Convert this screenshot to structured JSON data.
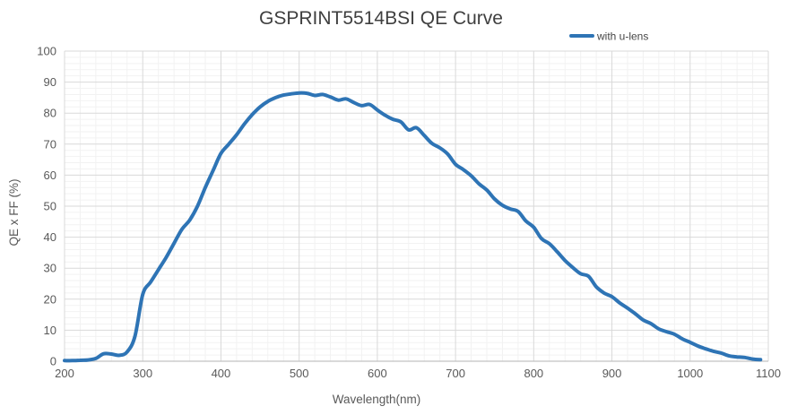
{
  "chart_data": {
    "type": "line",
    "title": "GSPRINT5514BSI QE Curve",
    "xlabel": "Wavelength(nm)",
    "ylabel": "QE x FF (%)",
    "xlim": [
      200,
      1100
    ],
    "ylim": [
      0,
      100
    ],
    "x_tick_step": 100,
    "y_tick_step": 10,
    "x_minor_step": 20,
    "y_minor_step": 2,
    "grid": true,
    "legend_position": "top-right",
    "series": [
      {
        "name": "with u-lens",
        "color": "#2E74B5",
        "x": [
          200,
          210,
          220,
          230,
          240,
          250,
          260,
          270,
          280,
          290,
          300,
          310,
          320,
          330,
          340,
          350,
          360,
          370,
          380,
          390,
          400,
          410,
          420,
          430,
          440,
          450,
          460,
          470,
          480,
          490,
          500,
          510,
          520,
          530,
          540,
          550,
          560,
          570,
          580,
          590,
          600,
          610,
          620,
          630,
          640,
          650,
          660,
          670,
          680,
          690,
          700,
          710,
          720,
          730,
          740,
          750,
          760,
          770,
          780,
          790,
          800,
          810,
          820,
          830,
          840,
          850,
          860,
          870,
          880,
          890,
          900,
          910,
          920,
          930,
          940,
          950,
          960,
          970,
          980,
          990,
          1000,
          1010,
          1020,
          1030,
          1040,
          1050,
          1060,
          1070,
          1080,
          1090
        ],
        "y": [
          0.2,
          0.2,
          0.3,
          0.4,
          0.9,
          2.4,
          2.3,
          1.9,
          3.0,
          8.0,
          21.5,
          25.5,
          29.5,
          33.5,
          38.0,
          42.5,
          45.5,
          50.0,
          56.0,
          61.5,
          67.0,
          70.0,
          73.0,
          76.5,
          79.5,
          82.0,
          83.8,
          85.0,
          85.8,
          86.2,
          86.5,
          86.4,
          85.7,
          86.0,
          85.2,
          84.2,
          84.6,
          83.4,
          82.4,
          82.8,
          81.0,
          79.3,
          78.0,
          77.2,
          74.6,
          75.3,
          72.8,
          70.2,
          68.8,
          66.8,
          63.5,
          61.8,
          59.8,
          57.2,
          55.2,
          52.3,
          50.3,
          49.1,
          48.3,
          45.2,
          43.2,
          39.5,
          37.9,
          35.3,
          32.5,
          30.2,
          28.2,
          27.4,
          24.0,
          22.0,
          20.8,
          18.8,
          17.1,
          15.3,
          13.3,
          12.1,
          10.4,
          9.5,
          8.7,
          7.2,
          6.1,
          4.9,
          4.0,
          3.2,
          2.6,
          1.7,
          1.4,
          1.2,
          0.7,
          0.5
        ]
      }
    ]
  },
  "colors": {
    "line": "#2E74B5",
    "grid_major": "#d9d9d9",
    "grid_minor": "#f2f2f2",
    "axis_line": "#c2c2c2",
    "tick_label": "#595959",
    "axis_label": "#595959",
    "title": "#3f3f3f",
    "background": "#ffffff"
  }
}
